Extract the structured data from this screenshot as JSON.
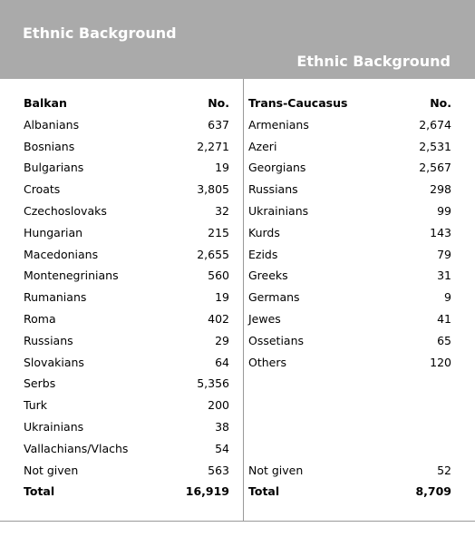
{
  "header": {
    "title_primary": "Ethnic Background",
    "title_secondary": "Ethnic Background"
  },
  "balkan": {
    "heading": "Balkan",
    "num_heading": "No.",
    "rows": [
      {
        "name": "Albanians",
        "value": "637"
      },
      {
        "name": "Bosnians",
        "value": "2,271"
      },
      {
        "name": "Bulgarians",
        "value": "19"
      },
      {
        "name": "Croats",
        "value": "3,805"
      },
      {
        "name": "Czechoslovaks",
        "value": "32"
      },
      {
        "name": "Hungarian",
        "value": "215"
      },
      {
        "name": "Macedonians",
        "value": "2,655"
      },
      {
        "name": "Montenegrinians",
        "value": "560"
      },
      {
        "name": "Rumanians",
        "value": "19"
      },
      {
        "name": "Roma",
        "value": "402"
      },
      {
        "name": "Russians",
        "value": "29"
      },
      {
        "name": "Slovakians",
        "value": "64"
      },
      {
        "name": "Serbs",
        "value": "5,356"
      },
      {
        "name": "Turk",
        "value": "200"
      },
      {
        "name": "Ukrainians",
        "value": "38"
      },
      {
        "name": "Vallachians/Vlachs",
        "value": "54"
      },
      {
        "name": "Not given",
        "value": "563"
      }
    ],
    "total_label": "Total",
    "total_value": "16,919"
  },
  "caucasus": {
    "heading": "Trans-Caucasus",
    "num_heading": "No.",
    "rows": [
      {
        "name": "Armenians",
        "value": "2,674"
      },
      {
        "name": "Azeri",
        "value": "2,531"
      },
      {
        "name": "Georgians",
        "value": "2,567"
      },
      {
        "name": "Russians",
        "value": "298"
      },
      {
        "name": "Ukrainians",
        "value": "99"
      },
      {
        "name": "Kurds",
        "value": "143"
      },
      {
        "name": "Ezids",
        "value": "79"
      },
      {
        "name": "Greeks",
        "value": "31"
      },
      {
        "name": "Germans",
        "value": "9"
      },
      {
        "name": "Jewes",
        "value": "41"
      },
      {
        "name": "Ossetians",
        "value": "65"
      },
      {
        "name": "Others",
        "value": "120"
      }
    ],
    "not_given_label": "Not given",
    "not_given_value": "52",
    "total_label": "Total",
    "total_value": "8,709"
  }
}
